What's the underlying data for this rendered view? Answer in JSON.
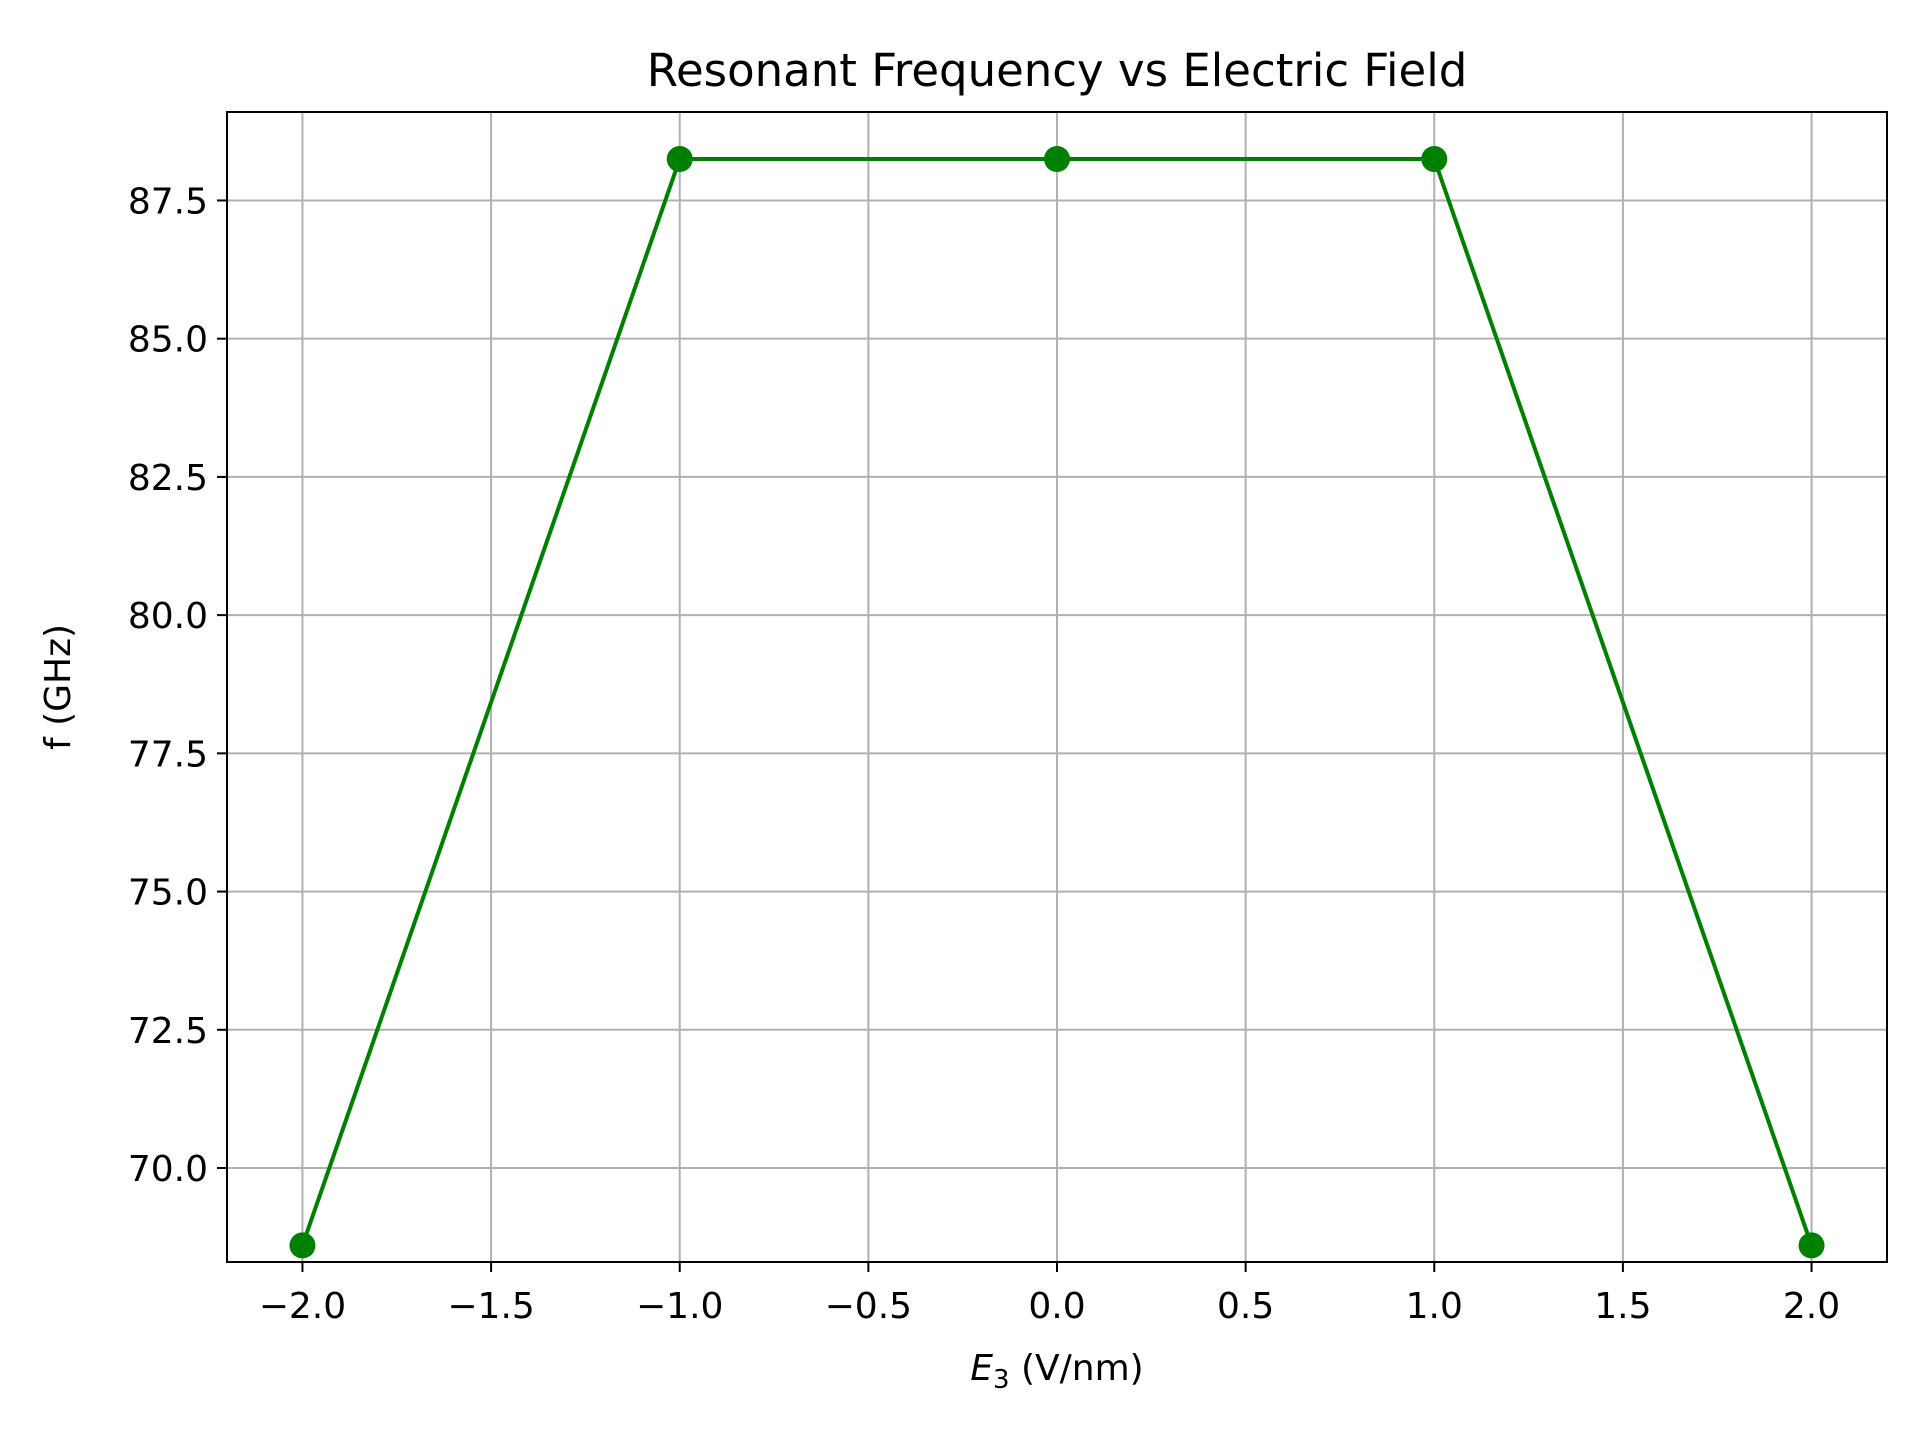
{
  "chart_data": {
    "type": "line",
    "title": "Resonant Frequency vs Electric Field",
    "xlabel_symbol": "E",
    "xlabel_subscript": "3",
    "xlabel_unit": " (V/nm)",
    "ylabel": "f (GHz)",
    "xlim": [
      -2.2,
      2.2
    ],
    "ylim": [
      68.3,
      89.1
    ],
    "xticks": [
      -2.0,
      -1.5,
      -1.0,
      -0.5,
      0.0,
      0.5,
      1.0,
      1.5,
      2.0
    ],
    "xtick_labels": [
      "−2.0",
      "−1.5",
      "−1.0",
      "−0.5",
      "0.0",
      "0.5",
      "1.0",
      "1.5",
      "2.0"
    ],
    "yticks": [
      70.0,
      72.5,
      75.0,
      77.5,
      80.0,
      82.5,
      85.0,
      87.5
    ],
    "ytick_labels": [
      "70.0",
      "72.5",
      "75.0",
      "77.5",
      "80.0",
      "82.5",
      "85.0",
      "87.5"
    ],
    "grid": true,
    "series": [
      {
        "x": [
          -2.0,
          -1.0,
          0.0,
          1.0,
          2.0
        ],
        "y": [
          68.6,
          88.25,
          88.25,
          88.25,
          68.6
        ],
        "color": "#008000",
        "marker": "circle"
      }
    ]
  }
}
